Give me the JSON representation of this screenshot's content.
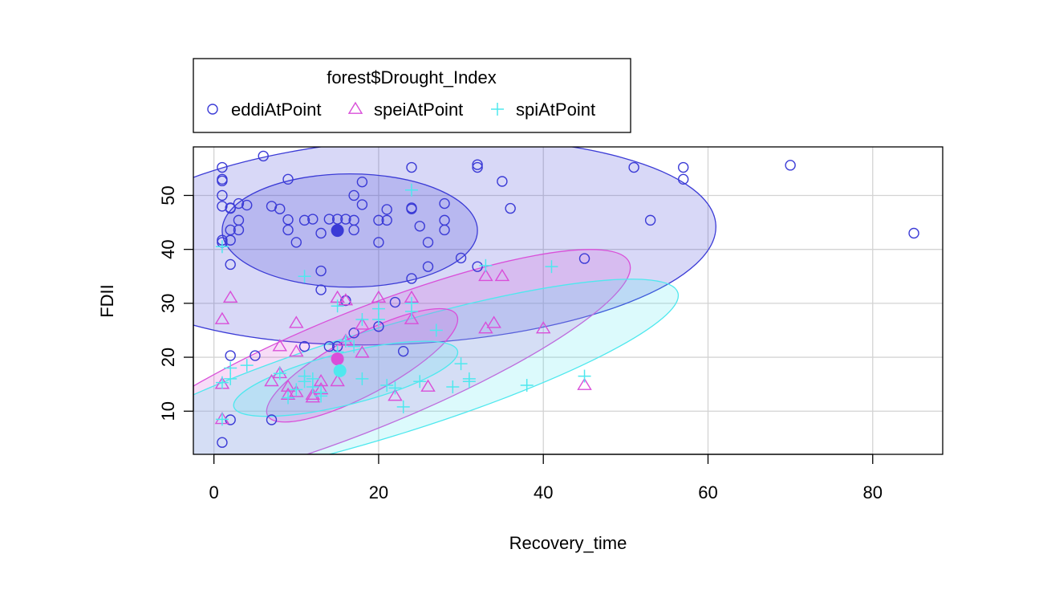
{
  "chart_data": {
    "type": "scatter",
    "title": "",
    "xlabel": "Recovery_time",
    "ylabel": "FDII",
    "xlim": [
      -2.5,
      88.5
    ],
    "ylim": [
      2,
      59
    ],
    "x_ticks": [
      0,
      20,
      40,
      60,
      80
    ],
    "y_ticks": [
      10,
      20,
      30,
      40,
      50
    ],
    "grid": true,
    "legend": {
      "title": "forest$Drought_Index",
      "placement": "top-left, above plot"
    },
    "series": [
      {
        "name": "eddiAtPoint",
        "marker": "circle",
        "color": "#3b3bd6",
        "centroid": [
          15,
          43.5
        ],
        "ellipses": [
          {
            "cx": 16.5,
            "cy": 43.5,
            "rx": 15.5,
            "ry": 10.5,
            "angle": 0
          },
          {
            "cx": 23.5,
            "cy": 41.5,
            "rx": 37.5,
            "ry": 19,
            "angle": 3
          }
        ],
        "points": [
          [
            1,
            55.2
          ],
          [
            1,
            53
          ],
          [
            1,
            52.7
          ],
          [
            1,
            50
          ],
          [
            1,
            48
          ],
          [
            1,
            41.7
          ],
          [
            1,
            41.3
          ],
          [
            1,
            4.2
          ],
          [
            2,
            47.7
          ],
          [
            2,
            47.6
          ],
          [
            2,
            43.6
          ],
          [
            2,
            41.7
          ],
          [
            2,
            37.2
          ],
          [
            2,
            20.3
          ],
          [
            2,
            8.4
          ],
          [
            3,
            48.5
          ],
          [
            3,
            45.4
          ],
          [
            3,
            43.6
          ],
          [
            4,
            48.2
          ],
          [
            5,
            20.3
          ],
          [
            6,
            57.3
          ],
          [
            7,
            48
          ],
          [
            7,
            8.4
          ],
          [
            8,
            47.5
          ],
          [
            9,
            53
          ],
          [
            9,
            45.5
          ],
          [
            9,
            43.6
          ],
          [
            10,
            41.3
          ],
          [
            11,
            45.4
          ],
          [
            11,
            22
          ],
          [
            12,
            45.6
          ],
          [
            13,
            43
          ],
          [
            13,
            36
          ],
          [
            13,
            32.5
          ],
          [
            14,
            45.6
          ],
          [
            14,
            22
          ],
          [
            15,
            45.6
          ],
          [
            15,
            22
          ],
          [
            15,
            19.5
          ],
          [
            16,
            45.6
          ],
          [
            16,
            30.5
          ],
          [
            17,
            50
          ],
          [
            17,
            45.4
          ],
          [
            17,
            43.6
          ],
          [
            17,
            24.5
          ],
          [
            18,
            52.5
          ],
          [
            18,
            48.3
          ],
          [
            20,
            45.4
          ],
          [
            20,
            41.3
          ],
          [
            20,
            25.7
          ],
          [
            21,
            47.4
          ],
          [
            21,
            45.4
          ],
          [
            22,
            30.2
          ],
          [
            23,
            21.1
          ],
          [
            24,
            55.2
          ],
          [
            24,
            47.7
          ],
          [
            24,
            47.5
          ],
          [
            24,
            34.6
          ],
          [
            25,
            44.3
          ],
          [
            26,
            41.3
          ],
          [
            26,
            36.8
          ],
          [
            28,
            48.5
          ],
          [
            28,
            45.4
          ],
          [
            28,
            43.6
          ],
          [
            30,
            38.4
          ],
          [
            32,
            55.7
          ],
          [
            32,
            55.2
          ],
          [
            32,
            36.8
          ],
          [
            35,
            52.6
          ],
          [
            36,
            47.6
          ],
          [
            45,
            38.3
          ],
          [
            51,
            55.2
          ],
          [
            53,
            45.4
          ],
          [
            57,
            55.2
          ],
          [
            57,
            53
          ],
          [
            70,
            55.6
          ],
          [
            85,
            43
          ]
        ]
      },
      {
        "name": "speiAtPoint",
        "marker": "triangle",
        "color": "#d94fd9",
        "centroid": [
          15,
          19.7
        ],
        "ellipses": [
          {
            "cx": 18,
            "cy": 18.5,
            "rx": 13,
            "ry": 5.5,
            "angle": 28
          },
          {
            "cx": 18,
            "cy": 17.5,
            "rx": 35,
            "ry": 11,
            "angle": 22
          }
        ],
        "points": [
          [
            1,
            27
          ],
          [
            1,
            15
          ],
          [
            1,
            8.5
          ],
          [
            2,
            31
          ],
          [
            7,
            15.5
          ],
          [
            8,
            22
          ],
          [
            8,
            17
          ],
          [
            9,
            14.5
          ],
          [
            9,
            13
          ],
          [
            10,
            26.3
          ],
          [
            10,
            21
          ],
          [
            10,
            13.5
          ],
          [
            12,
            13
          ],
          [
            12,
            12.5
          ],
          [
            13,
            15.5
          ],
          [
            13,
            14
          ],
          [
            15,
            31
          ],
          [
            15,
            15.5
          ],
          [
            16,
            23
          ],
          [
            16,
            30.5
          ],
          [
            18,
            26
          ],
          [
            18,
            20.8
          ],
          [
            20,
            31
          ],
          [
            22,
            12.8
          ],
          [
            24,
            31
          ],
          [
            24,
            27
          ],
          [
            26,
            14.5
          ],
          [
            33,
            35
          ],
          [
            33,
            25.3
          ],
          [
            34,
            26.3
          ],
          [
            35,
            35
          ],
          [
            40,
            25.3
          ],
          [
            45,
            14.8
          ]
        ]
      },
      {
        "name": "spiAtPoint",
        "marker": "plus",
        "color": "#4ee8ee",
        "centroid": [
          15.3,
          17.5
        ],
        "ellipses": [
          {
            "cx": 16,
            "cy": 16,
            "rx": 14,
            "ry": 4.8,
            "angle": 14
          },
          {
            "cx": 20,
            "cy": 15,
            "rx": 38,
            "ry": 10,
            "angle": 17
          }
        ],
        "points": [
          [
            1,
            40.5
          ],
          [
            1,
            15.3
          ],
          [
            1,
            8.5
          ],
          [
            2,
            18
          ],
          [
            2,
            16
          ],
          [
            4,
            18.5
          ],
          [
            8,
            17
          ],
          [
            9,
            12.5
          ],
          [
            10,
            14
          ],
          [
            11,
            35
          ],
          [
            11,
            16.5
          ],
          [
            11,
            15.5
          ],
          [
            12,
            16
          ],
          [
            12,
            14.5
          ],
          [
            13,
            13.5
          ],
          [
            13,
            12.8
          ],
          [
            15,
            21
          ],
          [
            15,
            29.5
          ],
          [
            16,
            23
          ],
          [
            17,
            22
          ],
          [
            18,
            27
          ],
          [
            18,
            16
          ],
          [
            20,
            27
          ],
          [
            20,
            29
          ],
          [
            21,
            14.8
          ],
          [
            22,
            14.3
          ],
          [
            23,
            10.8
          ],
          [
            24,
            51
          ],
          [
            24,
            30
          ],
          [
            24,
            28.5
          ],
          [
            25,
            15.5
          ],
          [
            27,
            25
          ],
          [
            29,
            14.5
          ],
          [
            30,
            18.8
          ],
          [
            31,
            16
          ],
          [
            31,
            15.5
          ],
          [
            33,
            37
          ],
          [
            38,
            14.8
          ],
          [
            41,
            36.8
          ],
          [
            45,
            16.5
          ]
        ]
      }
    ]
  }
}
